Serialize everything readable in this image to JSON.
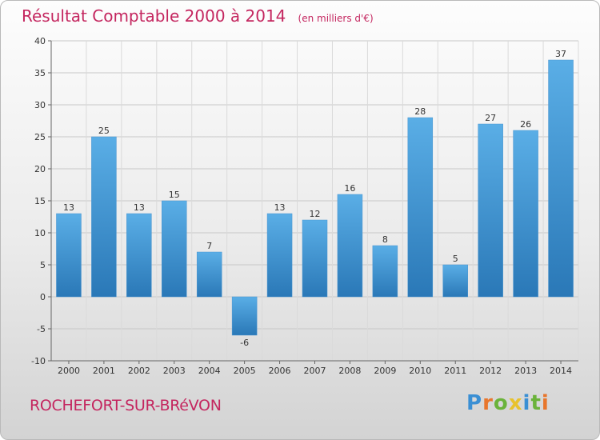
{
  "title": "Résultat Comptable 2000 à 2014",
  "subtitle": "(en milliers d'€)",
  "commune": "ROCHEFORT-SUR-BRéVON",
  "logo": {
    "text": "Proxiti",
    "letters": [
      {
        "ch": "P",
        "color": "#3a8fd4"
      },
      {
        "ch": "r",
        "color": "#e8762c"
      },
      {
        "ch": "o",
        "color": "#6bb33a"
      },
      {
        "ch": "x",
        "color": "#e8c22c"
      },
      {
        "ch": "i",
        "color": "#3a8fd4"
      },
      {
        "ch": "t",
        "color": "#6bb33a"
      },
      {
        "ch": "i",
        "color": "#e8762c"
      }
    ]
  },
  "colors": {
    "bar_top": "#5aaee6",
    "bar_bottom": "#2a78b7",
    "title": "#c4265f"
  },
  "chart_data": {
    "type": "bar",
    "categories": [
      "2000",
      "2001",
      "2002",
      "2003",
      "2004",
      "2005",
      "2006",
      "2007",
      "2008",
      "2009",
      "2010",
      "2011",
      "2012",
      "2013",
      "2014"
    ],
    "values": [
      13,
      25,
      13,
      15,
      7,
      -6,
      13,
      12,
      16,
      8,
      28,
      5,
      27,
      26,
      37
    ],
    "ylim": [
      -10,
      40
    ],
    "yticks": [
      -10,
      -5,
      0,
      5,
      10,
      15,
      20,
      25,
      30,
      35,
      40
    ],
    "grid": true
  }
}
